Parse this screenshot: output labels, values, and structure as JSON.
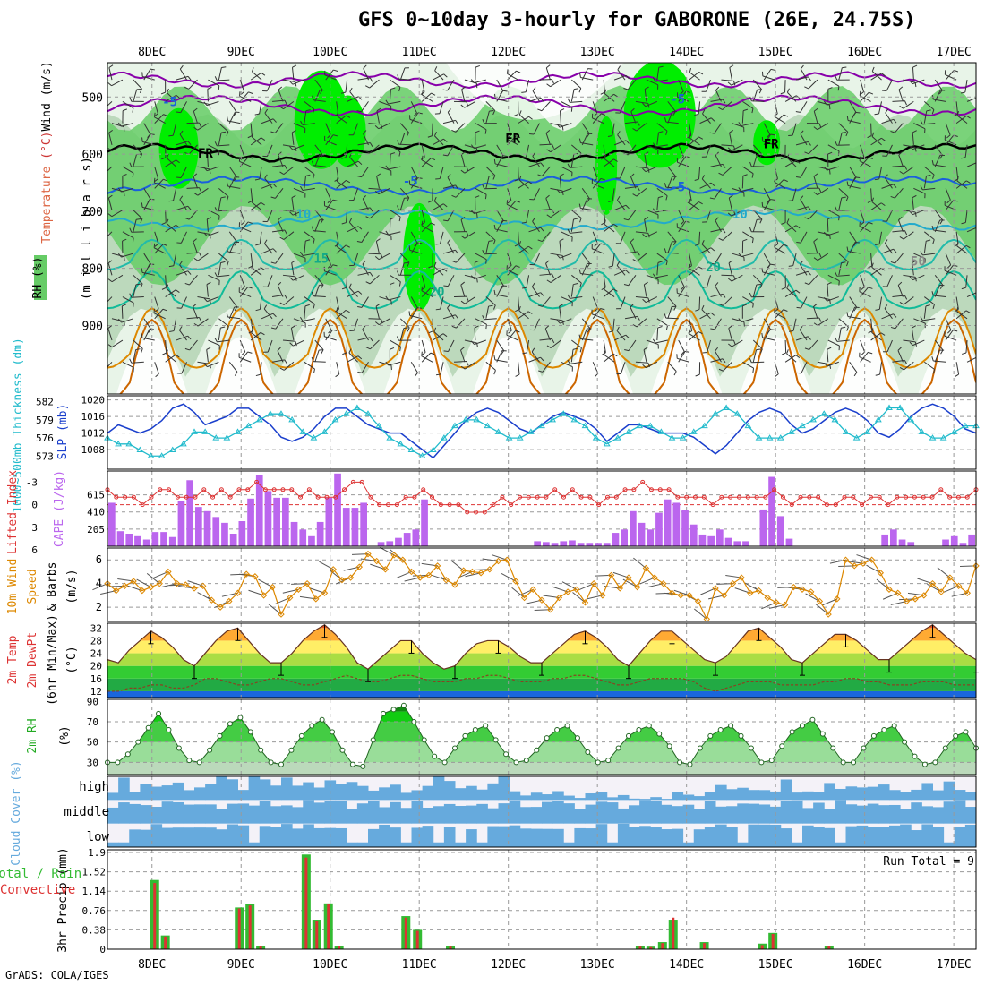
{
  "title": "GFS 0~10day 3-hourly for GABORONE (26E, 24.75S)",
  "credit": "GrADS: COLA/IGES",
  "colors": {
    "rh_light": "#e8f4e8",
    "rh_mid": "#bcd9bc",
    "rh_green": "#66cc66",
    "rh_bright": "#00ee00",
    "temp_purple": "#8800aa",
    "temp_blue": "#1a5fdd",
    "temp_cyan": "#22aacc",
    "temp_teal": "#22bbaa",
    "temp_orange": "#dd8800",
    "slp": "#1a3fcc",
    "thickness": "#22bbcc",
    "cape": "#bb66ee",
    "li": "#dd3333",
    "wind10": "#dd8800",
    "cloud": "#66aadd",
    "cloud_gap": "#e8e8ee",
    "precip_total": "#33bb33",
    "precip_conv": "#dd3333"
  },
  "x_axis": {
    "dates": [
      "8DEC",
      "9DEC",
      "10DEC",
      "11DEC",
      "12DEC",
      "13DEC",
      "14DEC",
      "15DEC",
      "16DEC",
      "17DEC"
    ],
    "start_day": 7.5,
    "end_day": 17.25
  },
  "chart_data": [
    {
      "type": "heatmap",
      "name": "upper",
      "y_label": "(m i l l i b a r s)",
      "legend": {
        "rh": "RH (%)",
        "temp": "Temperature (°C)",
        "wind": "Wind (m/s)"
      },
      "yticks": [
        "500",
        "600",
        "700",
        "800",
        "900"
      ],
      "ylim": [
        440,
        1020
      ],
      "contour_labels": [
        {
          "text": "-5",
          "day": 8.2,
          "p": 516
        },
        {
          "text": "-5",
          "day": 13.9,
          "p": 511
        },
        {
          "text": "FR",
          "day": 8.6,
          "p": 606
        },
        {
          "text": "FR",
          "day": 12.05,
          "p": 580
        },
        {
          "text": "FR",
          "day": 14.95,
          "p": 590
        },
        {
          "text": "-5",
          "day": 10.9,
          "p": 655
        },
        {
          "text": "-5",
          "day": 13.9,
          "p": 665
        },
        {
          "text": "10",
          "day": 9.7,
          "p": 713
        },
        {
          "text": "10",
          "day": 14.6,
          "p": 713
        },
        {
          "text": "15",
          "day": 9.9,
          "p": 790
        },
        {
          "text": "20",
          "day": 11.2,
          "p": 848
        },
        {
          "text": "20",
          "day": 14.3,
          "p": 805
        },
        {
          "text": "50",
          "day": 16.6,
          "p": 795
        }
      ]
    },
    {
      "type": "line",
      "name": "slp_thickness",
      "ylabel_left": "1000~500mb Thickness (dm)",
      "ylabel_right": "SLP (mb)",
      "left_ticks": [
        "582",
        "579",
        "576",
        "573"
      ],
      "right_ticks": [
        "1020",
        "1016",
        "1012",
        "1008"
      ],
      "slp": [
        1012,
        1014,
        1013,
        1012,
        1013,
        1015,
        1018,
        1019,
        1017,
        1014,
        1015,
        1016,
        1018,
        1018,
        1016,
        1014,
        1011,
        1010,
        1011,
        1013,
        1016,
        1018,
        1018,
        1016,
        1014,
        1013,
        1012,
        1012,
        1010,
        1008,
        1006,
        1009,
        1012,
        1015,
        1017,
        1018,
        1017,
        1015,
        1013,
        1012,
        1014,
        1016,
        1017,
        1016,
        1015,
        1013,
        1010,
        1012,
        1014,
        1014,
        1013,
        1012,
        1012,
        1012,
        1011,
        1009,
        1007,
        1009,
        1012,
        1015,
        1017,
        1018,
        1017,
        1014,
        1012,
        1013,
        1015,
        1017,
        1018,
        1017,
        1015,
        1012,
        1011,
        1013,
        1016,
        1018,
        1019,
        1018,
        1016,
        1013,
        1012
      ],
      "thickness": [
        576,
        575,
        575,
        574,
        573,
        573,
        574,
        575,
        577,
        577,
        576,
        576,
        577,
        578,
        579,
        580,
        580,
        579,
        577,
        576,
        577,
        579,
        580,
        581,
        580,
        578,
        576,
        575,
        574,
        573,
        574,
        576,
        578,
        579,
        579,
        578,
        577,
        576,
        576,
        577,
        578,
        579,
        580,
        579,
        578,
        576,
        575,
        576,
        577,
        578,
        578,
        577,
        576,
        576,
        577,
        578,
        580,
        581,
        580,
        578,
        576,
        576,
        576,
        577,
        578,
        579,
        580,
        579,
        577,
        576,
        577,
        579,
        581,
        581,
        579,
        577,
        576,
        576,
        577,
        578,
        578
      ]
    },
    {
      "type": "bar",
      "name": "cape_li",
      "ylabel_left": "Lifted Index",
      "ylabel_right": "CAPE (J/kg)",
      "left_ticks": [
        "-3",
        "0",
        "3",
        "6"
      ],
      "right_ticks": [
        "615",
        "410",
        "205"
      ],
      "cape": [
        520,
        180,
        150,
        120,
        80,
        170,
        170,
        110,
        540,
        790,
        470,
        420,
        350,
        280,
        150,
        300,
        570,
        850,
        660,
        580,
        580,
        290,
        200,
        120,
        290,
        580,
        870,
        460,
        460,
        520,
        0,
        50,
        60,
        100,
        160,
        200,
        560,
        0,
        0,
        0,
        0,
        0,
        0,
        0,
        0,
        0,
        0,
        0,
        0,
        60,
        50,
        40,
        60,
        70,
        40,
        40,
        40,
        40,
        160,
        200,
        420,
        280,
        200,
        400,
        560,
        520,
        430,
        260,
        140,
        120,
        200,
        100,
        60,
        60,
        0,
        440,
        830,
        360,
        90,
        0,
        0,
        0,
        0,
        0,
        0,
        0,
        0,
        0,
        0,
        140,
        200,
        80,
        50,
        0,
        0,
        0,
        80,
        120,
        40,
        140
      ],
      "li": [
        2,
        1,
        1,
        1,
        0,
        1,
        2,
        2,
        1,
        1,
        1,
        2,
        1,
        2,
        1,
        2,
        2,
        3,
        2,
        2,
        2,
        2,
        1,
        2,
        1,
        1,
        1,
        2,
        3,
        3,
        1,
        0,
        0,
        0,
        1,
        1,
        2,
        1,
        0,
        0,
        0,
        -1,
        -1,
        -1,
        0,
        1,
        0,
        1,
        1,
        1,
        1,
        2,
        1,
        2,
        1,
        1,
        0,
        1,
        1,
        2,
        2,
        3,
        2,
        2,
        2,
        1,
        1,
        1,
        1,
        0,
        1,
        1,
        1,
        1,
        1,
        1,
        2,
        1,
        0,
        1,
        1,
        1,
        0,
        0,
        1,
        1,
        0,
        1,
        1,
        0,
        1,
        1,
        1,
        1,
        1,
        2,
        1,
        1,
        1,
        2
      ]
    },
    {
      "type": "line",
      "name": "wind10",
      "ylabel": "10m Wind Speed & Barbs (m/s)",
      "yticks": [
        "6",
        "4",
        "2"
      ],
      "ylim": [
        0.8,
        7
      ],
      "values": [
        4.0,
        3.4,
        3.8,
        4.2,
        3.4,
        3.7,
        4.0,
        5.0,
        4.0,
        3.9,
        3.6,
        3.8,
        2.6,
        2.0,
        2.5,
        3.2,
        4.8,
        4.6,
        3.0,
        3.7,
        1.4,
        2.8,
        3.5,
        4.0,
        2.7,
        3.2,
        5.2,
        4.3,
        4.5,
        5.4,
        6.5,
        5.9,
        5.2,
        6.4,
        6.0,
        5.0,
        4.5,
        4.7,
        5.5,
        4.3,
        3.9,
        5.1,
        5.0,
        4.9,
        5.2,
        5.9,
        6.0,
        4.2,
        2.8,
        3.5,
        2.6,
        1.8,
        2.8,
        3.3,
        3.5,
        2.4,
        4.0,
        3.0,
        4.7,
        3.6,
        4.5,
        3.7,
        5.3,
        4.5,
        4.0,
        3.2,
        3.0,
        3.0,
        2.5,
        1.0,
        3.6,
        3.0,
        4.0,
        4.5,
        3.2,
        3.4,
        2.8,
        2.4,
        2.2,
        3.7,
        3.5,
        3.3,
        2.5,
        1.4,
        2.7,
        6.0,
        5.5,
        5.7,
        6.0,
        4.9,
        3.5,
        3.2,
        2.5,
        2.7,
        3.0,
        4.0,
        3.3,
        4.5,
        3.8,
        3.2,
        5.5
      ]
    },
    {
      "type": "area",
      "name": "temp2m",
      "ylabel": "2m Temp 2m DewPt (6hr Min/Max) (°C)",
      "yticks": [
        "32",
        "28",
        "24",
        "20",
        "16",
        "12"
      ],
      "ylim": [
        10,
        33.5
      ],
      "temp": [
        22,
        21,
        25,
        28,
        31,
        29,
        26,
        22,
        20,
        24,
        28,
        31,
        32,
        28,
        24,
        21,
        21,
        24,
        28,
        31,
        33,
        30,
        26,
        21,
        19,
        22,
        25,
        28,
        28,
        24,
        21,
        19,
        20,
        24,
        27,
        28,
        28,
        26,
        23,
        21,
        21,
        24,
        27,
        30,
        31,
        29,
        26,
        22,
        20,
        24,
        28,
        31,
        31,
        28,
        25,
        22,
        21,
        23,
        27,
        31,
        32,
        29,
        26,
        22,
        21,
        24,
        27,
        30,
        30,
        28,
        25,
        22,
        22,
        25,
        28,
        31,
        33,
        30,
        27,
        24,
        22
      ],
      "dewpt": [
        12,
        12,
        13,
        13,
        14,
        14,
        13,
        13,
        14,
        16,
        16,
        15,
        14,
        14,
        15,
        16,
        16,
        15,
        14,
        14,
        15,
        16,
        17,
        16,
        15,
        15,
        16,
        17,
        17,
        16,
        15,
        15,
        15,
        16,
        16,
        17,
        17,
        16,
        15,
        15,
        15,
        16,
        16,
        17,
        17,
        16,
        15,
        14,
        14,
        15,
        16,
        16,
        16,
        16,
        15,
        13,
        12,
        13,
        14,
        15,
        15,
        15,
        14,
        14,
        14,
        14,
        15,
        15,
        16,
        16,
        15,
        15,
        14,
        14,
        14,
        15,
        15,
        15,
        14,
        14,
        14
      ]
    },
    {
      "type": "area",
      "name": "rh2m",
      "ylabel": "2m RH (%)",
      "yticks": [
        "90",
        "70",
        "50",
        "30"
      ],
      "ylim": [
        18,
        92
      ],
      "values": [
        30,
        30,
        38,
        50,
        64,
        78,
        62,
        44,
        32,
        30,
        42,
        56,
        68,
        74,
        60,
        42,
        30,
        28,
        42,
        56,
        66,
        72,
        60,
        42,
        28,
        26,
        52,
        78,
        82,
        86,
        70,
        52,
        36,
        30,
        44,
        56,
        62,
        66,
        52,
        38,
        30,
        32,
        42,
        54,
        62,
        66,
        54,
        40,
        30,
        32,
        44,
        56,
        62,
        66,
        58,
        46,
        30,
        28,
        44,
        56,
        62,
        66,
        56,
        44,
        30,
        32,
        46,
        60,
        66,
        72,
        58,
        44,
        30,
        30,
        44,
        56,
        62,
        66,
        50,
        36,
        28,
        30,
        44,
        56,
        60,
        44
      ],
      "unit": "(%)"
    },
    {
      "type": "heatmap",
      "name": "cloud",
      "ylabel": "Cloud Cover (%)",
      "rows": [
        "high",
        "middle",
        "low"
      ]
    },
    {
      "type": "bar",
      "name": "precip",
      "ylabel": "3hr Precip (mm)",
      "ylabel_left": "Total / Rain",
      "ylabel_left2": "Convective",
      "run_total": "Run Total = 9",
      "yticks": [
        "1.9",
        "1.52",
        "1.14",
        "0.76",
        "0.38",
        "0"
      ],
      "ylim": [
        0,
        1.9
      ],
      "bars": [
        {
          "day": 8.03,
          "total": 1.36,
          "conv": 1.3
        },
        {
          "day": 8.15,
          "total": 0.27,
          "conv": 0.25
        },
        {
          "day": 8.98,
          "total": 0.82,
          "conv": 0.8
        },
        {
          "day": 9.1,
          "total": 0.88,
          "conv": 0.86
        },
        {
          "day": 9.22,
          "total": 0.07,
          "conv": 0.06
        },
        {
          "day": 9.73,
          "total": 1.86,
          "conv": 1.8
        },
        {
          "day": 9.85,
          "total": 0.58,
          "conv": 0.55
        },
        {
          "day": 9.98,
          "total": 0.9,
          "conv": 0.88
        },
        {
          "day": 10.1,
          "total": 0.07,
          "conv": 0.06
        },
        {
          "day": 10.85,
          "total": 0.65,
          "conv": 0.62
        },
        {
          "day": 10.98,
          "total": 0.38,
          "conv": 0.36
        },
        {
          "day": 11.35,
          "total": 0.06,
          "conv": 0.05
        },
        {
          "day": 13.48,
          "total": 0.07,
          "conv": 0.05
        },
        {
          "day": 13.6,
          "total": 0.05,
          "conv": 0.04
        },
        {
          "day": 13.73,
          "total": 0.14,
          "conv": 0.12
        },
        {
          "day": 13.85,
          "total": 0.58,
          "conv": 0.62
        },
        {
          "day": 14.2,
          "total": 0.14,
          "conv": 0.12
        },
        {
          "day": 14.85,
          "total": 0.11,
          "conv": 0.08
        },
        {
          "day": 14.97,
          "total": 0.32,
          "conv": 0.3
        },
        {
          "day": 15.6,
          "total": 0.07,
          "conv": 0.06
        }
      ]
    }
  ]
}
